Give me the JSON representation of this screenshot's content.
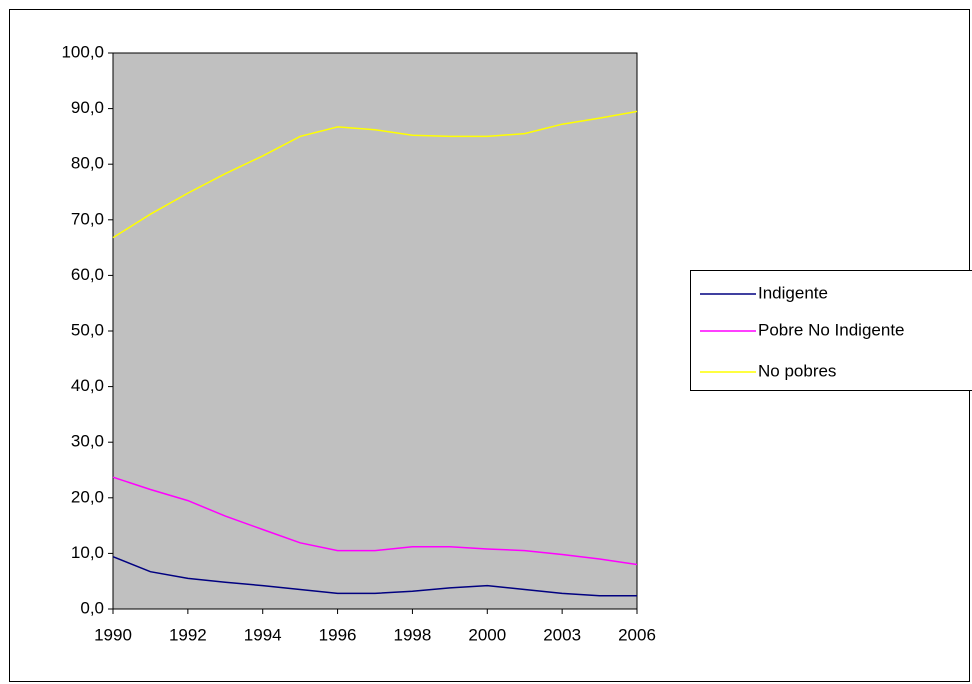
{
  "chart_data": {
    "type": "line",
    "categories": [
      "1990",
      null,
      "1992",
      null,
      "1994",
      null,
      "1996",
      null,
      "1998",
      null,
      "2000",
      null,
      "2003",
      null,
      "2006"
    ],
    "series": [
      {
        "name": "Indigente",
        "color": "#000080",
        "values": [
          9.4,
          6.7,
          5.5,
          4.8,
          4.2,
          3.5,
          2.8,
          2.8,
          3.2,
          3.8,
          4.2,
          3.5,
          2.8,
          2.4,
          2.4
        ]
      },
      {
        "name": "Pobre No Indigente",
        "color": "#ff00ff",
        "values": [
          23.7,
          21.5,
          19.5,
          16.7,
          14.3,
          11.9,
          10.5,
          10.5,
          11.2,
          11.2,
          10.8,
          10.5,
          9.8,
          9.0,
          8.0
        ]
      },
      {
        "name": "No pobres",
        "color": "#ffff00",
        "values": [
          66.8,
          71.0,
          74.8,
          78.3,
          81.5,
          85.0,
          86.7,
          86.2,
          85.2,
          85.0,
          85.0,
          85.5,
          87.2,
          88.3,
          89.5
        ]
      }
    ],
    "ylim": [
      0,
      100
    ],
    "yticks": [
      {
        "value": 0,
        "label": "0,0"
      },
      {
        "value": 10,
        "label": "10,0"
      },
      {
        "value": 20,
        "label": "20,0"
      },
      {
        "value": 30,
        "label": "30,0"
      },
      {
        "value": 40,
        "label": "40,0"
      },
      {
        "value": 50,
        "label": "50,0"
      },
      {
        "value": 60,
        "label": "60,0"
      },
      {
        "value": 70,
        "label": "70,0"
      },
      {
        "value": 80,
        "label": "80,0"
      },
      {
        "value": 90,
        "label": "90,0"
      },
      {
        "value": 100,
        "label": "100,0"
      }
    ],
    "legend": "right"
  }
}
